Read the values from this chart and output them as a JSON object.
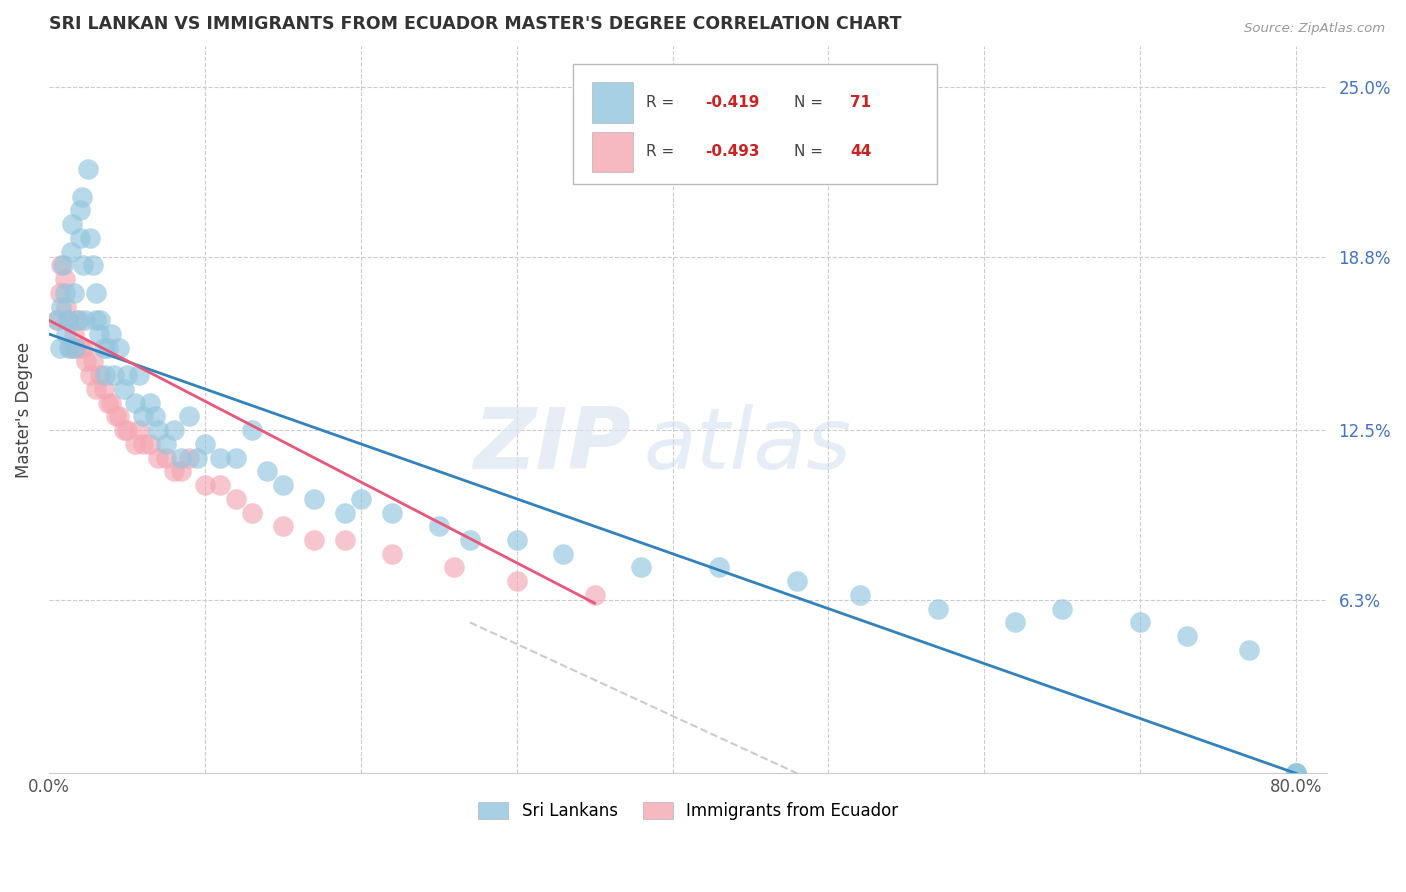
{
  "title": "SRI LANKAN VS IMMIGRANTS FROM ECUADOR MASTER'S DEGREE CORRELATION CHART",
  "source": "Source: ZipAtlas.com",
  "ylabel": "Master's Degree",
  "legend_r1": "R = -0.419",
  "legend_n1": "N =  71",
  "legend_r2": "R = -0.493",
  "legend_n2": "N =  44",
  "legend_label1": "Sri Lankans",
  "legend_label2": "Immigrants from Ecuador",
  "color_blue": "#92c5de",
  "color_pink": "#f4a7b2",
  "color_blue_line": "#3182bd",
  "color_pink_line": "#e8567a",
  "color_dashed": "#cccccc",
  "sri_lankans_x": [
    0.005,
    0.007,
    0.008,
    0.009,
    0.01,
    0.011,
    0.012,
    0.013,
    0.014,
    0.015,
    0.016,
    0.017,
    0.018,
    0.02,
    0.02,
    0.021,
    0.022,
    0.023,
    0.025,
    0.026,
    0.028,
    0.03,
    0.03,
    0.032,
    0.033,
    0.035,
    0.036,
    0.038,
    0.04,
    0.042,
    0.045,
    0.048,
    0.05,
    0.055,
    0.058,
    0.06,
    0.065,
    0.068,
    0.07,
    0.075,
    0.08,
    0.085,
    0.09,
    0.095,
    0.1,
    0.11,
    0.12,
    0.13,
    0.14,
    0.15,
    0.17,
    0.19,
    0.2,
    0.22,
    0.25,
    0.27,
    0.3,
    0.33,
    0.38,
    0.43,
    0.48,
    0.52,
    0.57,
    0.62,
    0.65,
    0.7,
    0.73,
    0.77,
    0.8,
    0.8,
    0.8
  ],
  "sri_lankans_y": [
    0.165,
    0.155,
    0.17,
    0.185,
    0.175,
    0.16,
    0.165,
    0.155,
    0.19,
    0.2,
    0.175,
    0.155,
    0.165,
    0.195,
    0.205,
    0.21,
    0.185,
    0.165,
    0.22,
    0.195,
    0.185,
    0.165,
    0.175,
    0.16,
    0.165,
    0.155,
    0.145,
    0.155,
    0.16,
    0.145,
    0.155,
    0.14,
    0.145,
    0.135,
    0.145,
    0.13,
    0.135,
    0.13,
    0.125,
    0.12,
    0.125,
    0.115,
    0.13,
    0.115,
    0.12,
    0.115,
    0.115,
    0.125,
    0.11,
    0.105,
    0.1,
    0.095,
    0.1,
    0.095,
    0.09,
    0.085,
    0.085,
    0.08,
    0.075,
    0.075,
    0.07,
    0.065,
    0.06,
    0.055,
    0.06,
    0.055,
    0.05,
    0.045,
    0.0,
    0.0,
    0.0
  ],
  "ecuador_x": [
    0.005,
    0.007,
    0.008,
    0.01,
    0.011,
    0.012,
    0.014,
    0.016,
    0.017,
    0.019,
    0.02,
    0.022,
    0.024,
    0.026,
    0.028,
    0.03,
    0.033,
    0.035,
    0.038,
    0.04,
    0.043,
    0.045,
    0.048,
    0.05,
    0.055,
    0.058,
    0.06,
    0.065,
    0.07,
    0.075,
    0.08,
    0.085,
    0.09,
    0.1,
    0.11,
    0.12,
    0.13,
    0.15,
    0.17,
    0.19,
    0.22,
    0.26,
    0.3,
    0.35
  ],
  "ecuador_y": [
    0.165,
    0.175,
    0.185,
    0.18,
    0.17,
    0.165,
    0.155,
    0.16,
    0.155,
    0.165,
    0.155,
    0.155,
    0.15,
    0.145,
    0.15,
    0.14,
    0.145,
    0.14,
    0.135,
    0.135,
    0.13,
    0.13,
    0.125,
    0.125,
    0.12,
    0.125,
    0.12,
    0.12,
    0.115,
    0.115,
    0.11,
    0.11,
    0.115,
    0.105,
    0.105,
    0.1,
    0.095,
    0.09,
    0.085,
    0.085,
    0.08,
    0.075,
    0.07,
    0.065
  ],
  "blue_line_x": [
    0.0,
    0.8
  ],
  "blue_line_y": [
    0.16,
    0.0
  ],
  "pink_line_x": [
    0.0,
    0.35
  ],
  "pink_line_y": [
    0.165,
    0.062
  ],
  "dashed_line_x": [
    0.27,
    0.48
  ],
  "dashed_line_y": [
    0.055,
    0.0
  ],
  "xlim": [
    0.0,
    0.82
  ],
  "ylim": [
    0.0,
    0.265
  ],
  "x_ticks": [
    0.0,
    0.1,
    0.2,
    0.3,
    0.4,
    0.5,
    0.6,
    0.7,
    0.8
  ],
  "x_tick_labels": [
    "0.0%",
    "",
    "",
    "",
    "",
    "",
    "",
    "",
    "80.0%"
  ],
  "y_tick_vals": [
    0.063,
    0.125,
    0.188,
    0.25
  ],
  "y_tick_labels": [
    "6.3%",
    "12.5%",
    "18.8%",
    "25.0%"
  ],
  "figwidth": 14.06,
  "figheight": 8.92,
  "dpi": 100
}
